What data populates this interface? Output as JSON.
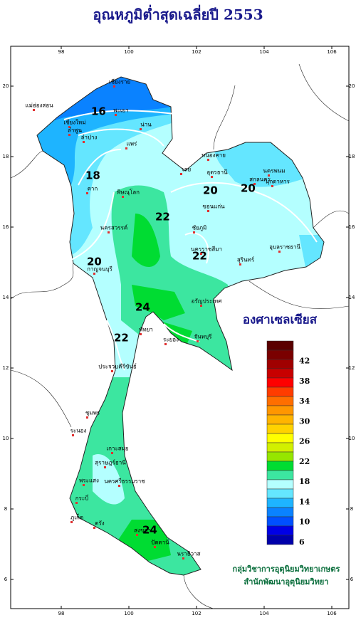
{
  "title": "อุณหภูมิต่ำสุดเฉลี่ยปี 2553",
  "map": {
    "lon_ticks": [
      98,
      100,
      102,
      104,
      106
    ],
    "lat_ticks": [
      6,
      8,
      10,
      12,
      14,
      16,
      18,
      20
    ],
    "contour_labels": [
      16,
      18,
      20,
      20,
      20,
      22,
      22,
      24,
      24,
      22
    ],
    "places": [
      "เชียงราย",
      "แม่ฮ่องสอน",
      "พะเยา",
      "เชียงใหม่",
      "ลำพูน",
      "ลำปาง",
      "น่าน",
      "แพร่",
      "ตาก",
      "หนองคาย",
      "อุดรธานี",
      "นครพนม",
      "สกลนคร",
      "เลย",
      "พิษณุโลก",
      "ขอนแก่น",
      "มุกดาหาร",
      "ชัยภูมิ",
      "นครสวรรค์",
      "อุบลราชธานี",
      "สุรินทร์",
      "นครราชสีมา",
      "กาญจนบุรี",
      "อรัญประเทศ",
      "พัทยา",
      "ระยอง",
      "จันทบุรี",
      "ประจวบคีรีขันธ์",
      "ชุมพร",
      "ระนอง",
      "เกาะสมุย",
      "สุราษฎร์ธานี",
      "พระแสง",
      "นครศรีธรรมราช",
      "ภูเก็ต",
      "กระบี่",
      "ตรัง",
      "สงขลา",
      "ปัตตานี",
      "นราธิวาส"
    ]
  },
  "legend": {
    "unit": "องศาเซลเซียส",
    "labels": [
      42,
      38,
      34,
      30,
      26,
      22,
      18,
      14,
      10,
      6
    ],
    "colors": [
      "#5a0000",
      "#7a0000",
      "#a00000",
      "#c80000",
      "#ff0000",
      "#ff3c00",
      "#ff6e00",
      "#ff9600",
      "#ffb400",
      "#ffd200",
      "#ffff00",
      "#d2f000",
      "#96e600",
      "#00dc32",
      "#3ce6a0",
      "#b4ffff",
      "#64e6ff",
      "#1eb4ff",
      "#0a82ff",
      "#0050ff",
      "#0000e6",
      "#0000aa"
    ]
  },
  "credits": [
    "กลุ่มวิชาการอุตุนิยมวิทยาเกษตร",
    "สำนักพัฒนาอุตุนิยมวิทยา"
  ]
}
